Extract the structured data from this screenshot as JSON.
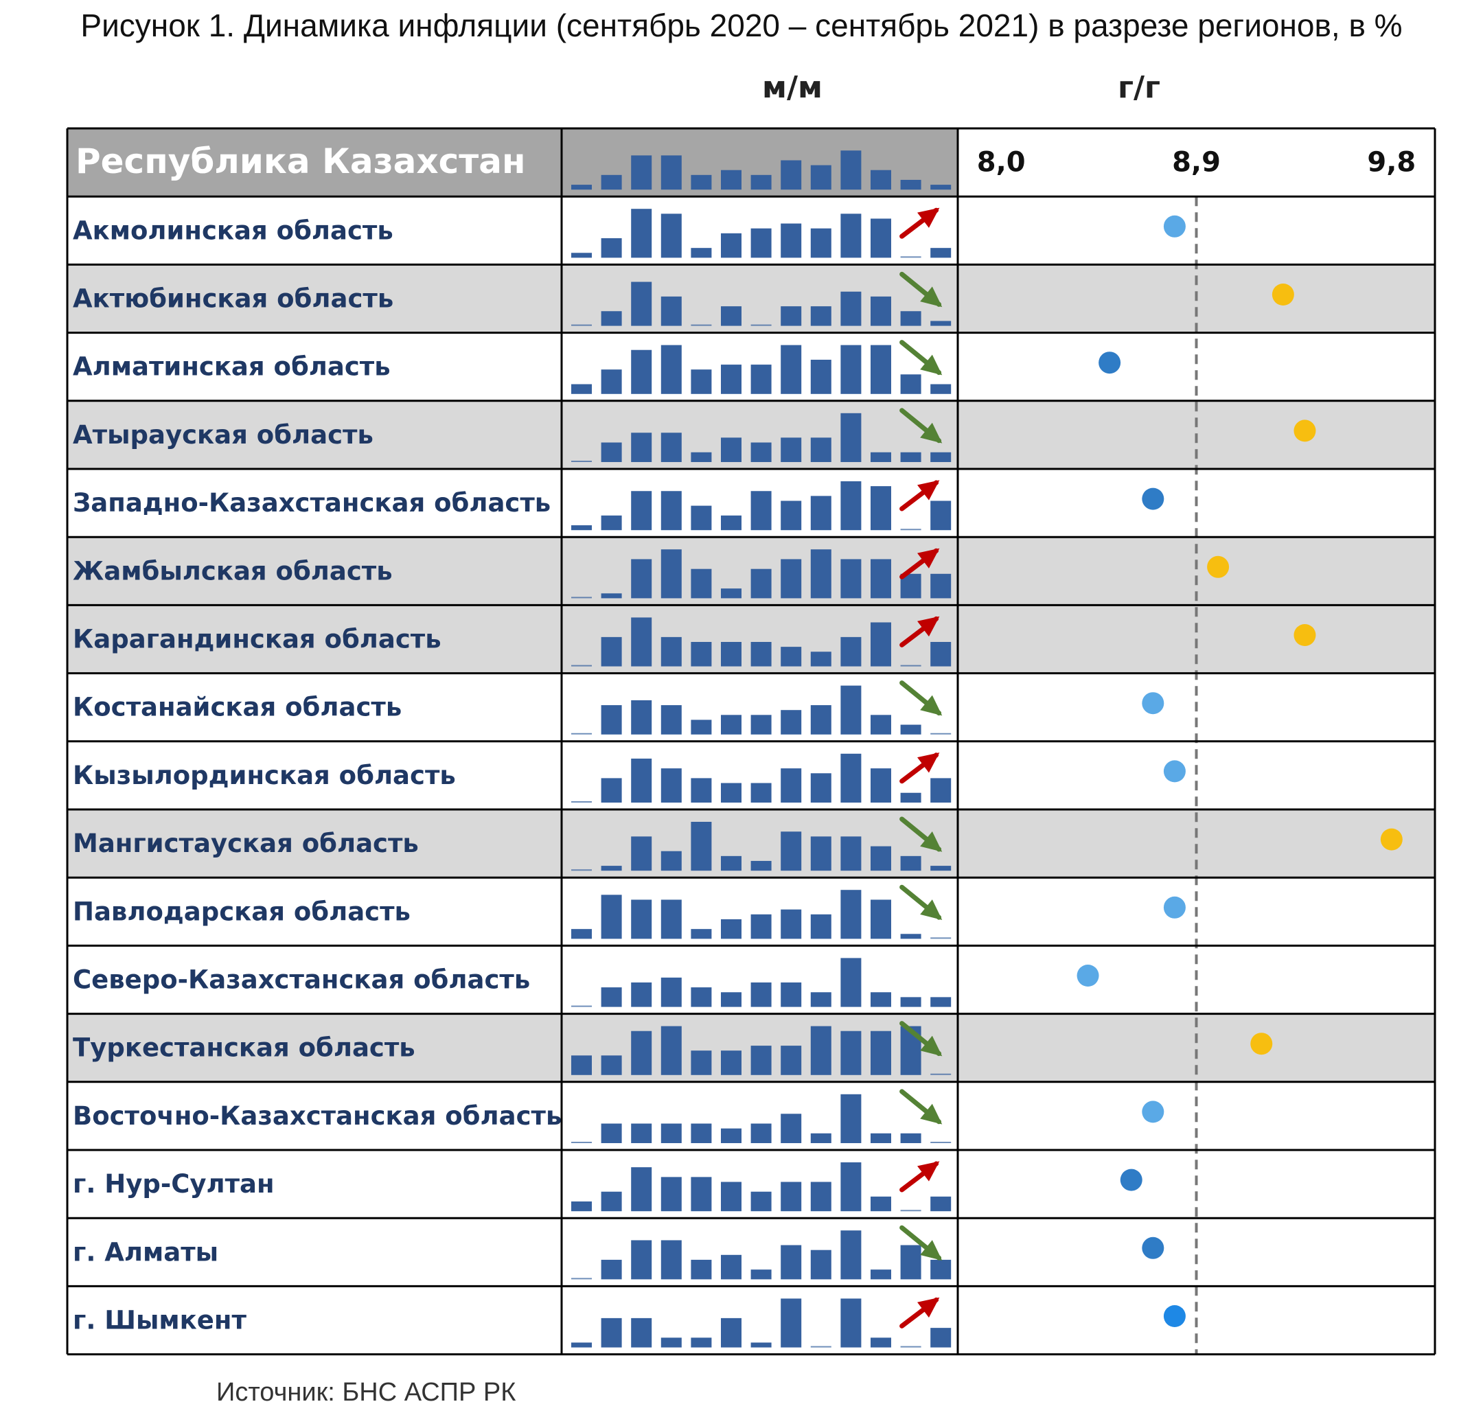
{
  "title": "Рисунок 1. Динамика инфляции (сентябрь 2020 – сентябрь 2021) в разрезе регионов, в %",
  "column_labels": {
    "mm": "м/м",
    "yy": "г/г"
  },
  "source": "Источник: БНС АСПР РК",
  "colors": {
    "bar": "#35609e",
    "arrow_up": "#c00000",
    "arrow_down": "#548235",
    "dot_blue": "#5aa9e6",
    "dot_dark_blue": "#2f7cc6",
    "dot_yellow": "#f7be10",
    "header_fill": "#a6a6a6",
    "shaded_row": "#d9d9d9",
    "grid": "#000000",
    "reference_line": "#777777"
  },
  "chart_data": {
    "type": "table",
    "columns": [
      "region",
      "mm_sparkline",
      "trend",
      "yy_value"
    ],
    "yy_axis": {
      "ticks": [
        8.0,
        8.9,
        9.8
      ],
      "tick_labels": [
        "8,0",
        "8,9",
        "9,8"
      ],
      "reference_line": 8.9,
      "range": [
        7.8,
        10.0
      ]
    },
    "mm_scale_max": 1.0,
    "header": {
      "region": "Республика Казахстан",
      "mm": [
        0.1,
        0.3,
        0.7,
        0.7,
        0.3,
        0.4,
        0.3,
        0.6,
        0.5,
        0.8,
        0.4,
        0.2,
        0.1
      ]
    },
    "rows": [
      {
        "region": "Акмолинская область",
        "shaded": false,
        "mm": [
          0.1,
          0.4,
          1.0,
          0.9,
          0.2,
          0.5,
          0.6,
          0.7,
          0.6,
          0.9,
          0.8,
          0.0,
          0.2
        ],
        "trend": "up",
        "yy": 8.8,
        "dot": "blue"
      },
      {
        "region": "Актюбинская область",
        "shaded": true,
        "mm": [
          0.0,
          0.3,
          0.9,
          0.6,
          0.0,
          0.4,
          0.0,
          0.4,
          0.4,
          0.7,
          0.6,
          0.3,
          0.1
        ],
        "trend": "down",
        "yy": 9.3,
        "dot": "yellow"
      },
      {
        "region": "Алматинская область",
        "shaded": false,
        "mm": [
          0.2,
          0.5,
          0.9,
          1.0,
          0.5,
          0.6,
          0.6,
          1.0,
          0.7,
          1.0,
          1.0,
          0.4,
          0.2
        ],
        "trend": "down",
        "yy": 8.5,
        "dot": "dark_blue"
      },
      {
        "region": "Атырауская область",
        "shaded": true,
        "mm": [
          0.0,
          0.4,
          0.6,
          0.6,
          0.2,
          0.5,
          0.4,
          0.5,
          0.5,
          1.0,
          0.2,
          0.2,
          0.2
        ],
        "trend": "down",
        "yy": 9.4,
        "dot": "yellow"
      },
      {
        "region": "Западно-Казахстанская область",
        "shaded": false,
        "mm": [
          0.1,
          0.3,
          0.8,
          0.8,
          0.5,
          0.3,
          0.8,
          0.6,
          0.7,
          1.0,
          0.9,
          0.0,
          0.6
        ],
        "trend": "up",
        "yy": 8.7,
        "dot": "dark_blue"
      },
      {
        "region": "Жамбылская область",
        "shaded": true,
        "mm": [
          0.0,
          0.1,
          0.8,
          1.0,
          0.6,
          0.2,
          0.6,
          0.8,
          1.0,
          0.8,
          0.8,
          0.5,
          0.5
        ],
        "trend": "up",
        "yy": 9.0,
        "dot": "yellow"
      },
      {
        "region": "Карагандинская область",
        "shaded": true,
        "mm": [
          0.0,
          0.6,
          1.0,
          0.6,
          0.5,
          0.5,
          0.5,
          0.4,
          0.3,
          0.6,
          0.9,
          0.0,
          0.5
        ],
        "trend": "up",
        "yy": 9.4,
        "dot": "yellow"
      },
      {
        "region": "Костанайская область",
        "shaded": false,
        "mm": [
          0.0,
          0.6,
          0.7,
          0.6,
          0.3,
          0.4,
          0.4,
          0.5,
          0.6,
          1.0,
          0.4,
          0.2,
          0.0
        ],
        "trend": "down",
        "yy": 8.7,
        "dot": "blue"
      },
      {
        "region": "Кызылординская область",
        "shaded": false,
        "mm": [
          0.0,
          0.5,
          0.9,
          0.7,
          0.5,
          0.4,
          0.4,
          0.7,
          0.6,
          1.0,
          0.7,
          0.2,
          0.5
        ],
        "trend": "up",
        "yy": 8.8,
        "dot": "blue"
      },
      {
        "region": "Мангистауская область",
        "shaded": true,
        "mm": [
          0.0,
          0.1,
          0.7,
          0.4,
          1.0,
          0.3,
          0.2,
          0.8,
          0.7,
          0.7,
          0.5,
          0.3,
          0.1
        ],
        "trend": "down",
        "yy": 9.8,
        "dot": "yellow"
      },
      {
        "region": "Павлодарская область",
        "shaded": false,
        "mm": [
          0.2,
          0.9,
          0.8,
          0.8,
          0.2,
          0.4,
          0.5,
          0.6,
          0.5,
          1.0,
          0.8,
          0.1,
          0.0
        ],
        "trend": "down",
        "yy": 8.8,
        "dot": "blue"
      },
      {
        "region": "Северо-Казахстанская область",
        "shaded": false,
        "mm": [
          0.0,
          0.4,
          0.5,
          0.6,
          0.4,
          0.3,
          0.5,
          0.5,
          0.3,
          1.0,
          0.3,
          0.2,
          0.2
        ],
        "trend": "flat",
        "yy": 8.4,
        "dot": "blue"
      },
      {
        "region": "Туркестанская область",
        "shaded": true,
        "mm": [
          0.4,
          0.4,
          0.9,
          1.0,
          0.5,
          0.5,
          0.6,
          0.6,
          1.0,
          0.9,
          0.9,
          1.0,
          0.0
        ],
        "trend": "down",
        "yy": 9.2,
        "dot": "yellow"
      },
      {
        "region": "Восточно-Казахстанская область",
        "shaded": false,
        "mm": [
          0.0,
          0.4,
          0.4,
          0.4,
          0.4,
          0.3,
          0.4,
          0.6,
          0.2,
          1.0,
          0.2,
          0.2,
          0.0
        ],
        "trend": "down",
        "yy": 8.7,
        "dot": "blue"
      },
      {
        "region": "г. Нур-Султан",
        "shaded": false,
        "mm": [
          0.2,
          0.4,
          0.9,
          0.7,
          0.7,
          0.6,
          0.4,
          0.6,
          0.6,
          1.0,
          0.3,
          0.0,
          0.3
        ],
        "trend": "up",
        "yy": 8.6,
        "dot": "dark_blue"
      },
      {
        "region": "г. Алматы",
        "shaded": false,
        "mm": [
          0.0,
          0.4,
          0.8,
          0.8,
          0.4,
          0.5,
          0.2,
          0.7,
          0.6,
          1.0,
          0.2,
          0.7,
          0.4
        ],
        "trend": "down",
        "yy": 8.7,
        "dot": "dark_blue"
      },
      {
        "region": "г. Шымкент",
        "shaded": false,
        "mm": [
          0.1,
          0.6,
          0.6,
          0.2,
          0.2,
          0.6,
          0.1,
          1.0,
          0.0,
          1.0,
          0.2,
          0.0,
          0.4
        ],
        "trend": "up",
        "yy": 8.8,
        "dot": "bright_blue"
      }
    ]
  }
}
